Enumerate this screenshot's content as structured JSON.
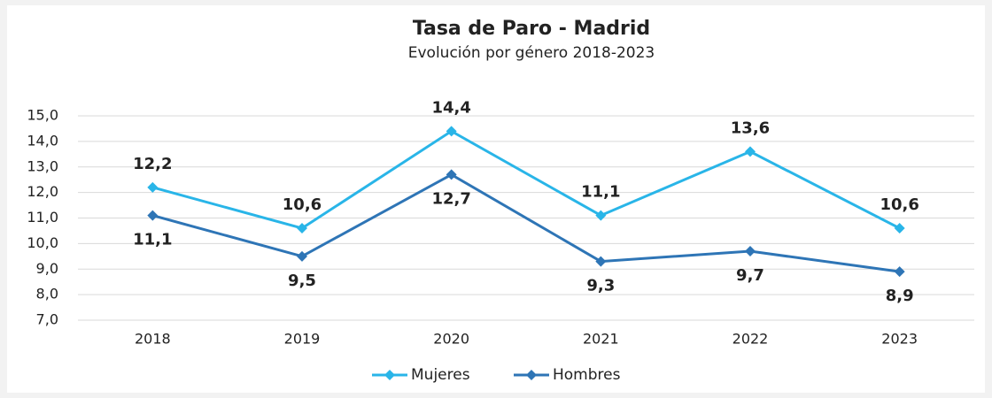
{
  "chart_data": {
    "type": "line",
    "title": "Tasa de Paro - Madrid",
    "subtitle": "Evolución por género 2018-2023",
    "categories": [
      "2018",
      "2019",
      "2020",
      "2021",
      "2022",
      "2023"
    ],
    "series": [
      {
        "name": "Mujeres",
        "color": "#29b5e8",
        "values": [
          12.2,
          10.6,
          14.4,
          11.1,
          13.6,
          10.6
        ],
        "value_labels": [
          "12,2",
          "10,6",
          "14,4",
          "11,1",
          "13,6",
          "10,6"
        ]
      },
      {
        "name": "Hombres",
        "color": "#2e75b6",
        "values": [
          11.1,
          9.5,
          12.7,
          9.3,
          9.7,
          8.9
        ],
        "value_labels": [
          "11,1",
          "9,5",
          "12,7",
          "9,3",
          "9,7",
          "8,9"
        ]
      }
    ],
    "ylim": [
      7,
      15
    ],
    "yticks": [
      {
        "value": 7,
        "label": "7,0"
      },
      {
        "value": 8,
        "label": "8,0"
      },
      {
        "value": 9,
        "label": "9,0"
      },
      {
        "value": 10,
        "label": "10,0"
      },
      {
        "value": 11,
        "label": "11,0"
      },
      {
        "value": 12,
        "label": "12,0"
      },
      {
        "value": 13,
        "label": "13,0"
      },
      {
        "value": 14,
        "label": "14,0"
      },
      {
        "value": 15,
        "label": "15,0"
      }
    ],
    "grid": true,
    "legend": "bottom"
  }
}
